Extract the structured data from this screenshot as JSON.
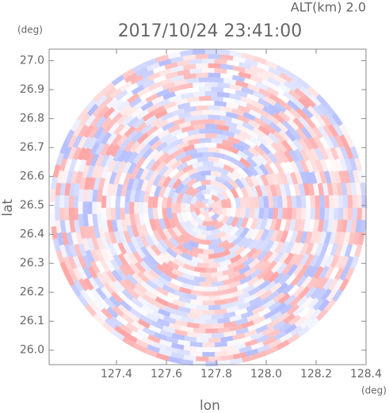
{
  "chart_data": {
    "type": "radar-field",
    "title": "2017/10/24 23:41:00",
    "subtitle": "ALT(km) 2.0",
    "x_label": "lon",
    "y_label": "lat",
    "x_unit": "(deg)",
    "y_unit": "(deg)",
    "xlim": [
      127.13,
      128.4
    ],
    "xticks": [
      127.4,
      127.6,
      127.8,
      {
        "value": 128.0,
        "label": "128.0"
      },
      128.2,
      128.4
    ],
    "ylim": [
      25.95,
      27.04
    ],
    "yticks": [
      {
        "value": 26.0,
        "label": "26.0"
      },
      26.1,
      26.2,
      26.3,
      26.4,
      26.5,
      26.6,
      26.7,
      26.8,
      26.9,
      {
        "value": 27.0,
        "label": "27.0"
      }
    ]
  }
}
